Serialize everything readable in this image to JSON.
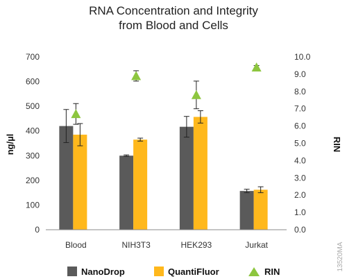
{
  "chart_data": {
    "type": "bar",
    "title": "RNA Concentration and Integrity",
    "subtitle": "from Blood and Cells",
    "categories": [
      "Blood",
      "NIH3T3",
      "HEK293",
      "Jurkat"
    ],
    "ylabel": "ng/µl",
    "y2label": "RIN",
    "ylim": [
      0,
      700
    ],
    "y2lim": [
      0.0,
      10.0
    ],
    "yticks": [
      "0",
      "100",
      "200",
      "300",
      "400",
      "500",
      "600",
      "700"
    ],
    "y2ticks": [
      "0.0",
      "1.0",
      "2.0",
      "3.0",
      "4.0",
      "5.0",
      "6.0",
      "7.0",
      "8.0",
      "9.0",
      "10.0"
    ],
    "grid": false,
    "legend_position": "bottom",
    "series": [
      {
        "name": "NanoDrop",
        "type": "bar",
        "axis": "left",
        "color": "#5a5a5a",
        "values": [
          420,
          300,
          417,
          157
        ],
        "errors": [
          67,
          3,
          42,
          7
        ]
      },
      {
        "name": "QuantiFluor",
        "type": "bar",
        "axis": "left",
        "color": "#ffb81c",
        "values": [
          385,
          365,
          457,
          162
        ],
        "errors": [
          45,
          6,
          25,
          12
        ]
      },
      {
        "name": "RIN",
        "type": "marker",
        "axis": "right",
        "color": "#8dc63f",
        "values": [
          6.7,
          8.9,
          7.8,
          9.4
        ],
        "errors": [
          0.6,
          0.3,
          0.8,
          0.1
        ]
      }
    ]
  },
  "figure_id": "13520MA"
}
